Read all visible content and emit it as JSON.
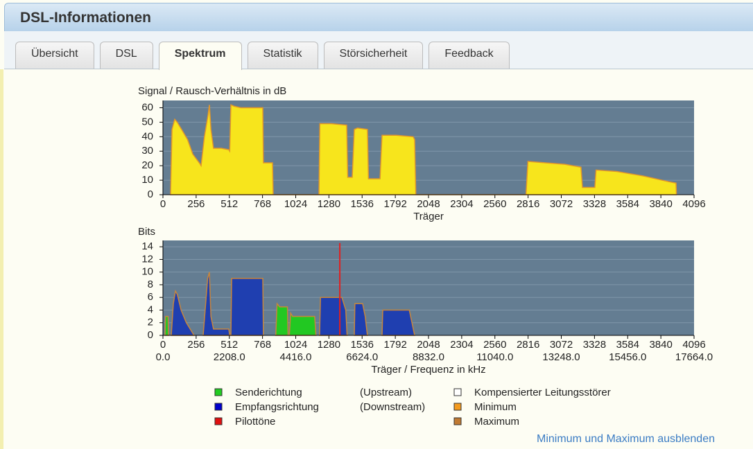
{
  "header": {
    "title": "DSL-Informationen"
  },
  "tabs": [
    {
      "label": "Übersicht"
    },
    {
      "label": "DSL"
    },
    {
      "label": "Spektrum"
    },
    {
      "label": "Statistik"
    },
    {
      "label": "Störsicherheit"
    },
    {
      "label": "Feedback"
    }
  ],
  "active_tab": 2,
  "chart_data": [
    {
      "type": "area",
      "title": "Signal / Rausch-Verhältnis in dB",
      "xlabel": "Träger",
      "xlim": [
        0,
        4096
      ],
      "ylim": [
        0,
        65
      ],
      "xticks": [
        0,
        256,
        512,
        768,
        1024,
        1280,
        1536,
        1792,
        2048,
        2304,
        2560,
        2816,
        3072,
        3328,
        3584,
        3840,
        4096
      ],
      "yticks": [
        0,
        10,
        20,
        30,
        40,
        50,
        60
      ],
      "grid": true,
      "background": "#647d92",
      "series": [
        {
          "color": "#f7e51c",
          "stroke": "#e2962a",
          "x": [
            59,
            70,
            91,
            110,
            150,
            190,
            230,
            280,
            294,
            320,
            348,
            358,
            370,
            390,
            450,
            508,
            515,
            524,
            550,
            600,
            700,
            770,
            775,
            845,
            850,
            1203,
            1210,
            1300,
            1417,
            1425,
            1460,
            1476,
            1500,
            1577,
            1585,
            1674,
            1690,
            1800,
            1930,
            1941,
            1950,
            2800,
            2815,
            2950,
            3100,
            3224,
            3235,
            3331,
            3340,
            3500,
            3700,
            3900,
            3957,
            3960
          ],
          "values": [
            0,
            45,
            52,
            50,
            44,
            38,
            28,
            22,
            20,
            40,
            55,
            62,
            45,
            32,
            32,
            31,
            30,
            62,
            61,
            60,
            60,
            60,
            22,
            22,
            0,
            0,
            49,
            49,
            48,
            12,
            12,
            45,
            46,
            45,
            11,
            11,
            41,
            41,
            40,
            38,
            0,
            0,
            23,
            22,
            21,
            19,
            5,
            5,
            17,
            16,
            13,
            9,
            8,
            0
          ]
        }
      ]
    },
    {
      "type": "area",
      "title": "Bits",
      "xlabel": "Träger / Frequenz in kHz",
      "xlim": [
        0,
        4096
      ],
      "ylim": [
        0,
        15
      ],
      "xticks": [
        0,
        256,
        512,
        768,
        1024,
        1280,
        1536,
        1792,
        2048,
        2304,
        2560,
        2816,
        3072,
        3328,
        3584,
        3840,
        4096
      ],
      "x2lim": [
        0,
        17664
      ],
      "x2ticks": [
        {
          "value": 0,
          "label": "0.0"
        },
        {
          "value": 2208,
          "label": "2208.0"
        },
        {
          "value": 4416,
          "label": "4416.0"
        },
        {
          "value": 6624,
          "label": "6624.0"
        },
        {
          "value": 8832,
          "label": "8832.0"
        },
        {
          "value": 11040,
          "label": "11040.0"
        },
        {
          "value": 13248,
          "label": "13248.0"
        },
        {
          "value": 15456,
          "label": "15456.0"
        },
        {
          "value": 17664,
          "label": "17664.0"
        }
      ],
      "yticks": [
        0,
        2,
        4,
        6,
        8,
        10,
        12,
        14
      ],
      "grid": true,
      "background": "#647d92",
      "series": [
        {
          "color": "#22c822",
          "stroke": "#c8863c",
          "x": [
            16,
            20,
            40,
            43,
            60,
            870,
            880,
            900,
            960,
            965,
            970,
            975,
            985,
            1000,
            1170,
            1180
          ],
          "values": [
            0,
            3,
            3,
            0,
            null,
            0,
            5,
            4.5,
            4.5,
            0,
            null,
            0,
            3.5,
            3,
            3,
            0
          ]
        },
        {
          "color": "#1f3fb0",
          "stroke": "#c8863c",
          "x": [
            64,
            80,
            96,
            110,
            140,
            180,
            240,
            250,
            310,
            345,
            358,
            370,
            390,
            508,
            515,
            520,
            524,
            530,
            770,
            775,
            800,
            1208,
            1215,
            1380,
            1410,
            1420,
            1440,
            1476,
            1480,
            1540,
            1560,
            1577,
            1600,
            1690,
            1695,
            1900,
            1941
          ],
          "values": [
            0,
            5,
            7,
            6.5,
            4,
            2,
            0,
            null,
            0,
            9,
            10,
            3,
            1,
            1,
            0,
            null,
            0,
            9,
            9,
            0,
            null,
            0,
            6,
            6,
            4,
            0,
            null,
            0,
            5,
            5,
            3,
            0,
            null,
            0,
            4,
            4,
            0
          ]
        },
        {
          "kind": "line",
          "color": "#e02020",
          "x": [
            1364,
            1364
          ],
          "values": [
            0,
            14.6
          ]
        }
      ]
    }
  ],
  "legend": {
    "items": [
      {
        "name": "Senderichtung",
        "note": "(Upstream)",
        "color": "#22cc22"
      },
      {
        "name": "Empfangsrichtung",
        "note": "(Downstream)",
        "color": "#0000cc"
      },
      {
        "name": "Pilottöne",
        "color": "#e01010"
      },
      {
        "name": "Kompensierter Leitungsstörer",
        "color": "#ffffff"
      },
      {
        "name": "Minimum",
        "color": "#f39a1e"
      },
      {
        "name": "Maximum",
        "color": "#c07a32"
      }
    ]
  },
  "link": "Minimum und Maximum ausblenden"
}
